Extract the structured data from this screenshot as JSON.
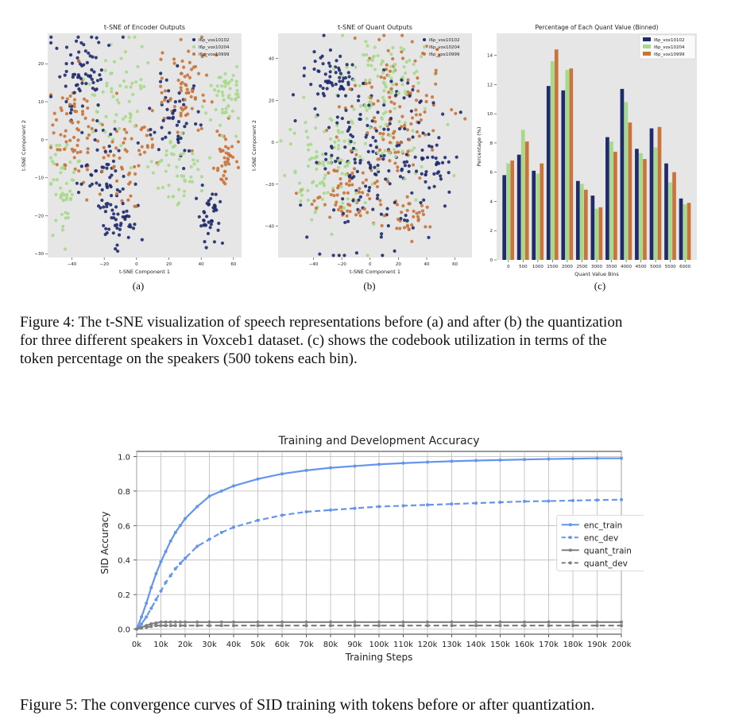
{
  "figure4": {
    "caption": "Figure 4: The t-SNE visualization of speech representations before (a) and after (b) the quantization for three different speakers in Voxceb1 dataset. (c) shows the codebook utilization in terms of the token percentage on the speakers (500 tokens each bin).",
    "caption_lines": [
      "Figure 4: The t-SNE visualization of speech representations before (a) and after (b) the quantization",
      "for three different speakers in Voxceb1 dataset. (c) shows the codebook utilization in terms of the",
      "token percentage on the speakers (500 tokens each bin)."
    ],
    "sub_labels": [
      "(a)",
      "(b)",
      "(c)"
    ]
  },
  "figure5": {
    "caption": "Figure 5: The convergence curves of SID training with tokens before or after quantization."
  },
  "colors": {
    "spk1": "#1f2b6b",
    "spk2": "#a6d98a",
    "spk3": "#c8743b",
    "plot_bg": "#e6e6e6",
    "enc": "#6495ed",
    "quant": "#808080"
  },
  "chart_data": [
    {
      "id": "tsne-encoder",
      "type": "scatter",
      "title": "t-SNE of Encoder Outputs",
      "xlabel": "t-SNE Component 1",
      "ylabel": "t-SNE Component 2",
      "xlim": [
        -55,
        65
      ],
      "ylim": [
        -31,
        28
      ],
      "xticks": [
        -40,
        -20,
        0,
        20,
        40,
        60
      ],
      "yticks": [
        -30,
        -20,
        -10,
        0,
        10,
        20
      ],
      "legend_position": "top-right",
      "series": [
        {
          "name": "l6p_vox10102",
          "color": "#1f2b6b",
          "clusters": [
            {
              "x": -35,
              "y": 18,
              "sx": 7,
              "sy": 6,
              "n": 70
            },
            {
              "x": -20,
              "y": -10,
              "sx": 7,
              "sy": 6,
              "n": 60
            },
            {
              "x": -10,
              "y": -22,
              "sx": 5,
              "sy": 3,
              "n": 40
            },
            {
              "x": 22,
              "y": 5,
              "sx": 7,
              "sy": 6,
              "n": 50
            },
            {
              "x": 45,
              "y": -20,
              "sx": 4,
              "sy": 4,
              "n": 40
            }
          ]
        },
        {
          "name": "l6p_vox10204",
          "color": "#a6d98a",
          "clusters": [
            {
              "x": -45,
              "y": -12,
              "sx": 5,
              "sy": 8,
              "n": 50
            },
            {
              "x": -10,
              "y": 12,
              "sx": 8,
              "sy": 8,
              "n": 60
            },
            {
              "x": 55,
              "y": 12,
              "sx": 5,
              "sy": 4,
              "n": 50
            },
            {
              "x": 25,
              "y": -8,
              "sx": 8,
              "sy": 5,
              "n": 50
            }
          ]
        },
        {
          "name": "l6p_vox10999",
          "color": "#c8743b",
          "clusters": [
            {
              "x": -38,
              "y": 2,
              "sx": 8,
              "sy": 7,
              "n": 70
            },
            {
              "x": 30,
              "y": 12,
              "sx": 8,
              "sy": 7,
              "n": 70
            },
            {
              "x": -5,
              "y": -5,
              "sx": 8,
              "sy": 6,
              "n": 50
            },
            {
              "x": 55,
              "y": -5,
              "sx": 4,
              "sy": 4,
              "n": 40
            }
          ]
        }
      ]
    },
    {
      "id": "tsne-quant",
      "type": "scatter",
      "title": "t-SNE of Quant Outputs",
      "xlabel": "t-SNE Component 1",
      "ylabel": "t-SNE Component 2",
      "xlim": [
        -65,
        72
      ],
      "ylim": [
        -55,
        52
      ],
      "xticks": [
        -40,
        -20,
        0,
        20,
        40,
        60
      ],
      "yticks": [
        -40,
        -20,
        0,
        20,
        40
      ],
      "legend_position": "top-right",
      "series": [
        {
          "name": "l6p_vox10102",
          "color": "#1f2b6b",
          "clusters": [
            {
              "x": -25,
              "y": 30,
              "sx": 10,
              "sy": 7,
              "n": 60
            },
            {
              "x": 0,
              "y": -5,
              "sx": 22,
              "sy": 20,
              "n": 160
            },
            {
              "x": 40,
              "y": -10,
              "sx": 10,
              "sy": 10,
              "n": 40
            }
          ]
        },
        {
          "name": "l6p_vox10204",
          "color": "#a6d98a",
          "clusters": [
            {
              "x": -35,
              "y": -10,
              "sx": 12,
              "sy": 12,
              "n": 80
            },
            {
              "x": 10,
              "y": 30,
              "sx": 14,
              "sy": 8,
              "n": 60
            },
            {
              "x": 5,
              "y": 5,
              "sx": 20,
              "sy": 18,
              "n": 80
            }
          ]
        },
        {
          "name": "l6p_vox10999",
          "color": "#c8743b",
          "clusters": [
            {
              "x": 20,
              "y": 10,
              "sx": 18,
              "sy": 18,
              "n": 120
            },
            {
              "x": -15,
              "y": -25,
              "sx": 15,
              "sy": 10,
              "n": 70
            },
            {
              "x": 30,
              "y": -35,
              "sx": 8,
              "sy": 5,
              "n": 30
            }
          ]
        }
      ]
    },
    {
      "id": "quant-bins",
      "type": "bar",
      "title": "Percentage of Each Quant Value (Binned)",
      "xlabel": "Quant Value Bins",
      "ylabel": "Percentage (%)",
      "ylim": [
        0,
        15.5
      ],
      "yticks": [
        0,
        2,
        4,
        6,
        8,
        10,
        12,
        14
      ],
      "categories": [
        "0",
        "500",
        "1000",
        "1500",
        "2000",
        "2500",
        "3000",
        "3500",
        "4000",
        "4500",
        "5000",
        "5500",
        "6000"
      ],
      "legend_position": "top-right",
      "series": [
        {
          "name": "l6p_vox10102",
          "color": "#1f2b6b",
          "values": [
            5.8,
            7.2,
            6.1,
            11.9,
            11.6,
            5.4,
            4.4,
            8.4,
            11.7,
            7.6,
            9.0,
            6.6,
            4.2
          ]
        },
        {
          "name": "l6p_vox10204",
          "color": "#a6d98a",
          "values": [
            6.6,
            8.9,
            5.9,
            13.6,
            13.0,
            5.2,
            3.5,
            8.1,
            10.8,
            7.3,
            7.7,
            5.3,
            3.8
          ]
        },
        {
          "name": "l6p_vox10999",
          "color": "#c8743b",
          "values": [
            6.8,
            8.1,
            6.6,
            14.4,
            13.1,
            4.8,
            3.6,
            7.4,
            9.4,
            6.9,
            9.1,
            6.0,
            3.9
          ]
        }
      ]
    },
    {
      "id": "sid-accuracy",
      "type": "line",
      "title": "Training and Development Accuracy",
      "xlabel": "Training Steps",
      "ylabel": "SID Accuracy",
      "xlim": [
        0,
        200000
      ],
      "ylim": [
        -0.03,
        1.03
      ],
      "grid": true,
      "legend_position": "center-right",
      "xtick_values": [
        0,
        10000,
        20000,
        30000,
        40000,
        50000,
        60000,
        70000,
        80000,
        90000,
        100000,
        110000,
        120000,
        130000,
        140000,
        150000,
        160000,
        170000,
        180000,
        190000,
        200000
      ],
      "xtick_labels": [
        "0k",
        "10k",
        "20k",
        "30k",
        "40k",
        "50k",
        "60k",
        "70k",
        "80k",
        "90k",
        "100k",
        "110k",
        "120k",
        "130k",
        "140k",
        "150k",
        "160k",
        "170k",
        "180k",
        "190k",
        "200k"
      ],
      "yticks": [
        0.0,
        0.2,
        0.4,
        0.6,
        0.8,
        1.0
      ],
      "ytick_labels": [
        "0.0",
        "0.2",
        "0.4",
        "0.6",
        "0.8",
        "1.0"
      ],
      "x": [
        0,
        2000,
        4000,
        6000,
        8000,
        10000,
        12000,
        14000,
        16000,
        18000,
        20000,
        25000,
        30000,
        35000,
        40000,
        50000,
        60000,
        70000,
        80000,
        90000,
        100000,
        110000,
        120000,
        130000,
        140000,
        150000,
        160000,
        170000,
        180000,
        190000,
        200000
      ],
      "series": [
        {
          "name": "enc_train",
          "color": "#6495ed",
          "dash": "solid",
          "values": [
            0.0,
            0.07,
            0.15,
            0.24,
            0.32,
            0.39,
            0.45,
            0.51,
            0.56,
            0.6,
            0.64,
            0.71,
            0.77,
            0.8,
            0.83,
            0.87,
            0.9,
            0.92,
            0.935,
            0.945,
            0.955,
            0.962,
            0.968,
            0.973,
            0.977,
            0.98,
            0.983,
            0.986,
            0.988,
            0.99,
            0.99
          ]
        },
        {
          "name": "enc_dev",
          "color": "#6495ed",
          "dash": "dashed",
          "values": [
            0.0,
            0.03,
            0.07,
            0.12,
            0.17,
            0.22,
            0.27,
            0.31,
            0.35,
            0.38,
            0.41,
            0.48,
            0.52,
            0.56,
            0.59,
            0.63,
            0.66,
            0.68,
            0.69,
            0.7,
            0.71,
            0.715,
            0.72,
            0.725,
            0.73,
            0.735,
            0.74,
            0.742,
            0.745,
            0.748,
            0.75
          ]
        },
        {
          "name": "quant_train",
          "color": "#808080",
          "dash": "solid",
          "values": [
            0.0,
            0.01,
            0.02,
            0.03,
            0.035,
            0.04,
            0.04,
            0.04,
            0.04,
            0.04,
            0.04,
            0.04,
            0.04,
            0.04,
            0.04,
            0.04,
            0.04,
            0.04,
            0.04,
            0.04,
            0.04,
            0.04,
            0.04,
            0.04,
            0.04,
            0.04,
            0.04,
            0.04,
            0.04,
            0.04,
            0.04
          ]
        },
        {
          "name": "quant_dev",
          "color": "#808080",
          "dash": "dashed",
          "values": [
            0.0,
            0.005,
            0.01,
            0.015,
            0.02,
            0.02,
            0.02,
            0.02,
            0.02,
            0.02,
            0.02,
            0.02,
            0.02,
            0.02,
            0.02,
            0.02,
            0.02,
            0.02,
            0.02,
            0.02,
            0.02,
            0.02,
            0.02,
            0.02,
            0.02,
            0.02,
            0.02,
            0.02,
            0.02,
            0.02,
            0.02
          ]
        }
      ]
    }
  ]
}
